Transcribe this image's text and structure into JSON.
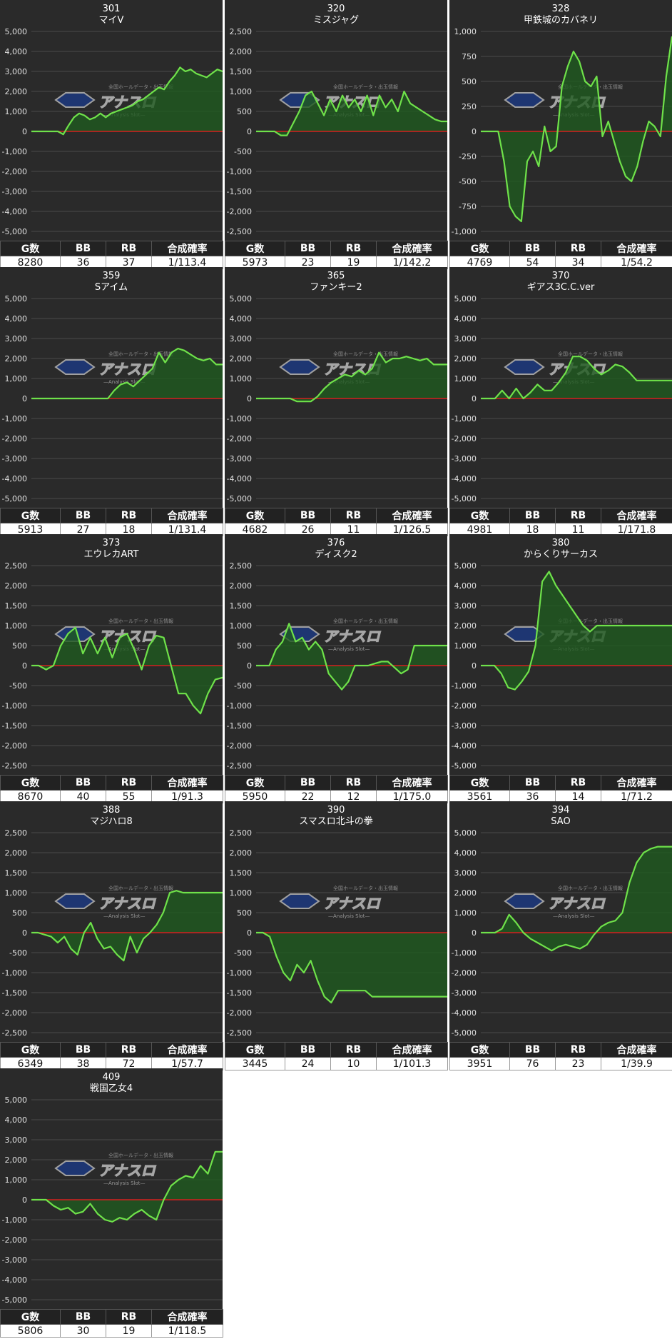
{
  "table_headers": {
    "games": "G数",
    "bb": "BB",
    "rb": "RB",
    "rate": "合成確率"
  },
  "watermark": {
    "title": "アナスロ",
    "tagline": "—Analysis Slot—",
    "subtitle": "全国ホールデータ・出玉情報"
  },
  "colors": {
    "line": "#6fe24a",
    "fill": "#1f5a1f",
    "zero_line": "#d42020",
    "background": "#2a2a2a",
    "grid": "#4a4a4a"
  },
  "chart_data": [
    {
      "type": "area",
      "number": "301",
      "title": "マイV",
      "ylim": [
        -5000,
        5000
      ],
      "step": 1000,
      "games": "8280",
      "bb": "36",
      "rb": "37",
      "rate": "1/113.4",
      "values": [
        0,
        0,
        0,
        0,
        0,
        0,
        -150,
        300,
        700,
        900,
        800,
        600,
        700,
        900,
        700,
        900,
        1000,
        1100,
        1200,
        1300,
        1500,
        1600,
        1800,
        2000,
        2200,
        2100,
        2500,
        2800,
        3200,
        3000,
        3100,
        2900,
        2800,
        2700,
        2900,
        3100,
        3000
      ]
    },
    {
      "type": "area",
      "number": "320",
      "title": "ミスジャグ",
      "ylim": [
        -2500,
        2500
      ],
      "step": 500,
      "games": "5973",
      "bb": "23",
      "rb": "19",
      "rate": "1/142.2",
      "values": [
        0,
        0,
        0,
        0,
        -100,
        -100,
        200,
        500,
        900,
        1000,
        700,
        400,
        800,
        500,
        900,
        600,
        800,
        500,
        900,
        400,
        900,
        600,
        800,
        500,
        1000,
        700,
        600,
        500,
        400,
        300,
        250,
        250
      ]
    },
    {
      "type": "area",
      "number": "328",
      "title": "甲鉄城のカバネリ",
      "ylim": [
        -1000,
        1000
      ],
      "step": 250,
      "games": "4769",
      "bb": "54",
      "rb": "34",
      "rate": "1/54.2",
      "values": [
        0,
        0,
        0,
        0,
        -300,
        -750,
        -850,
        -900,
        -300,
        -200,
        -350,
        50,
        -200,
        -150,
        450,
        650,
        800,
        700,
        500,
        450,
        550,
        -50,
        100,
        -100,
        -300,
        -450,
        -500,
        -350,
        -100,
        100,
        50,
        -50,
        550,
        950
      ]
    },
    {
      "type": "area",
      "number": "359",
      "title": "Sアイム",
      "ylim": [
        -5000,
        5000
      ],
      "step": 1000,
      "games": "5913",
      "bb": "27",
      "rb": "18",
      "rate": "1/131.4",
      "values": [
        0,
        0,
        0,
        0,
        0,
        0,
        0,
        0,
        0,
        0,
        0,
        0,
        0,
        400,
        700,
        800,
        600,
        900,
        1200,
        1500,
        2300,
        1800,
        2300,
        2500,
        2400,
        2200,
        2000,
        1900,
        2000,
        1700,
        1700
      ]
    },
    {
      "type": "area",
      "number": "365",
      "title": "ファンキー2",
      "ylim": [
        -5000,
        5000
      ],
      "step": 1000,
      "games": "4682",
      "bb": "26",
      "rb": "11",
      "rate": "1/126.5",
      "values": [
        0,
        0,
        0,
        0,
        0,
        0,
        -150,
        -150,
        -150,
        100,
        500,
        800,
        1000,
        1200,
        1100,
        1400,
        1200,
        1500,
        2300,
        1800,
        2000,
        2000,
        2100,
        2000,
        1900,
        2000,
        1700,
        1700,
        1700
      ]
    },
    {
      "type": "area",
      "number": "370",
      "title": "ギアス3C.C.ver",
      "ylim": [
        -5000,
        5000
      ],
      "step": 1000,
      "games": "4981",
      "bb": "18",
      "rb": "11",
      "rate": "1/171.8",
      "values": [
        0,
        0,
        0,
        400,
        0,
        500,
        0,
        300,
        700,
        400,
        400,
        800,
        1300,
        2100,
        2100,
        1900,
        1500,
        1200,
        1400,
        1700,
        1600,
        1300,
        900,
        900,
        900,
        900,
        900,
        900
      ]
    },
    {
      "type": "area",
      "number": "373",
      "title": "エウレカART",
      "ylim": [
        -2500,
        2500
      ],
      "step": 500,
      "games": "8670",
      "bb": "40",
      "rb": "55",
      "rate": "1/91.3",
      "values": [
        0,
        0,
        -100,
        0,
        500,
        800,
        950,
        300,
        700,
        300,
        700,
        200,
        700,
        800,
        400,
        -100,
        500,
        750,
        700,
        0,
        -700,
        -700,
        -1000,
        -1200,
        -700,
        -350,
        -300
      ]
    },
    {
      "type": "area",
      "number": "376",
      "title": "ディスク2",
      "ylim": [
        -2500,
        2500
      ],
      "step": 500,
      "games": "5950",
      "bb": "22",
      "rb": "12",
      "rate": "1/175.0",
      "values": [
        0,
        0,
        0,
        400,
        600,
        1050,
        600,
        700,
        400,
        600,
        400,
        -200,
        -400,
        -600,
        -400,
        0,
        0,
        0,
        50,
        100,
        100,
        -50,
        -200,
        -100,
        500,
        500,
        500,
        500,
        500,
        500
      ]
    },
    {
      "type": "area",
      "number": "380",
      "title": "からくりサーカス",
      "ylim": [
        -5000,
        5000
      ],
      "step": 1000,
      "games": "3561",
      "bb": "36",
      "rb": "14",
      "rate": "1/71.2",
      "values": [
        0,
        0,
        0,
        -400,
        -1100,
        -1200,
        -800,
        -300,
        1000,
        4200,
        4700,
        4000,
        3500,
        3000,
        2500,
        2000,
        1700,
        2000,
        2000,
        2000,
        2000,
        2000,
        2000,
        2000,
        2000,
        2000,
        2000,
        2000,
        2000
      ]
    },
    {
      "type": "area",
      "number": "388",
      "title": "マジハロ8",
      "ylim": [
        -2500,
        2500
      ],
      "step": 500,
      "games": "6349",
      "bb": "38",
      "rb": "72",
      "rate": "1/57.7",
      "values": [
        0,
        0,
        -50,
        -100,
        -250,
        -100,
        -400,
        -550,
        0,
        250,
        -150,
        -400,
        -350,
        -550,
        -700,
        -100,
        -500,
        -150,
        0,
        200,
        500,
        1000,
        1050,
        1000,
        1000,
        1000,
        1000,
        1000,
        1000,
        1000
      ]
    },
    {
      "type": "area",
      "number": "390",
      "title": "スマスロ北斗の拳",
      "ylim": [
        -2500,
        2500
      ],
      "step": 500,
      "games": "3445",
      "bb": "24",
      "rb": "10",
      "rate": "1/101.3",
      "values": [
        0,
        0,
        -100,
        -600,
        -1000,
        -1200,
        -800,
        -1000,
        -700,
        -1200,
        -1600,
        -1750,
        -1450,
        -1450,
        -1450,
        -1450,
        -1450,
        -1600,
        -1600,
        -1600,
        -1600,
        -1600,
        -1600,
        -1600,
        -1600,
        -1600,
        -1600,
        -1600,
        -1600
      ]
    },
    {
      "type": "area",
      "number": "394",
      "title": "SAO",
      "ylim": [
        -5000,
        5000
      ],
      "step": 1000,
      "games": "3951",
      "bb": "76",
      "rb": "23",
      "rate": "1/39.9",
      "values": [
        0,
        0,
        0,
        200,
        900,
        500,
        0,
        -300,
        -500,
        -700,
        -900,
        -700,
        -600,
        -700,
        -800,
        -600,
        -100,
        300,
        500,
        600,
        1000,
        2500,
        3500,
        4000,
        4200,
        4300,
        4300,
        4300
      ]
    },
    {
      "type": "area",
      "number": "409",
      "title": "戦国乙女4",
      "ylim": [
        -5000,
        5000
      ],
      "step": 1000,
      "games": "5806",
      "bb": "30",
      "rb": "19",
      "rate": "1/118.5",
      "values": [
        0,
        0,
        0,
        -300,
        -500,
        -400,
        -700,
        -600,
        -200,
        -700,
        -1000,
        -1100,
        -900,
        -1000,
        -700,
        -500,
        -800,
        -1000,
        0,
        700,
        1000,
        1200,
        1100,
        1700,
        1300,
        2400,
        2400
      ]
    }
  ]
}
